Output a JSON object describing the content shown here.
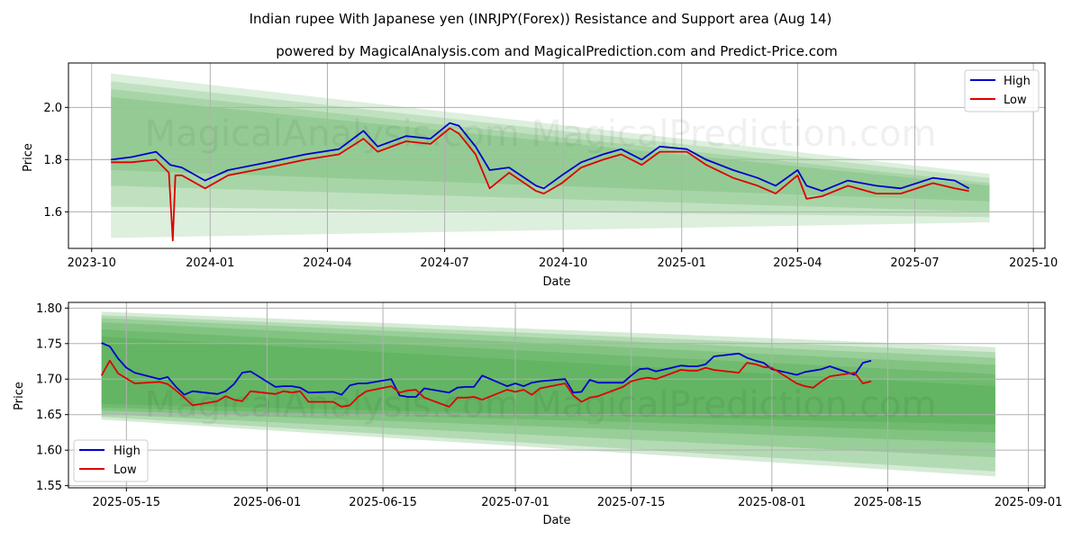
{
  "title": "Indian rupee With Japanese yen (INRJPY(Forex)) Resistance and Support area (Aug 14)",
  "subtitle": "powered by MagicalAnalysis.com and MagicalPrediction.com and Predict-Price.com",
  "watermark": "MagicalAnalysis.com    MagicalPrediction.com",
  "colors": {
    "high": "#0000cc",
    "low": "#dd0000",
    "band": "#2e9a2e",
    "grid": "#b0b0b0"
  },
  "chart_data": [
    {
      "type": "line",
      "xlabel": "Date",
      "ylabel": "Price",
      "x_ticks": [
        "2023-10",
        "2024-01",
        "2024-04",
        "2024-07",
        "2024-10",
        "2025-01",
        "2025-04",
        "2025-07",
        "2025-10"
      ],
      "y_ticks": [
        "1.6",
        "1.8",
        "2.0"
      ],
      "ylim": [
        1.46,
        2.17
      ],
      "xlim": [
        "2023-09-13",
        "2025-10-10"
      ],
      "grid": true,
      "legend": "top-right",
      "series": [
        {
          "name": "High",
          "color": "#0000cc",
          "x": [
            "2023-10-16",
            "2023-11-01",
            "2023-11-20",
            "2023-12-01",
            "2023-12-10",
            "2023-12-28",
            "2024-01-15",
            "2024-02-15",
            "2024-03-15",
            "2024-04-10",
            "2024-04-29",
            "2024-05-10",
            "2024-06-01",
            "2024-06-20",
            "2024-07-05",
            "2024-07-12",
            "2024-07-25",
            "2024-08-05",
            "2024-08-20",
            "2024-09-10",
            "2024-09-16",
            "2024-09-30",
            "2024-10-15",
            "2024-11-01",
            "2024-11-15",
            "2024-12-01",
            "2024-12-15",
            "2025-01-05",
            "2025-01-20",
            "2025-02-10",
            "2025-03-01",
            "2025-03-15",
            "2025-04-01",
            "2025-04-08",
            "2025-04-20",
            "2025-05-10",
            "2025-06-01",
            "2025-06-20",
            "2025-07-15",
            "2025-08-01",
            "2025-08-12"
          ],
          "values": [
            1.8,
            1.81,
            1.83,
            1.78,
            1.77,
            1.72,
            1.76,
            1.79,
            1.82,
            1.84,
            1.91,
            1.85,
            1.89,
            1.88,
            1.94,
            1.93,
            1.85,
            1.76,
            1.77,
            1.7,
            1.69,
            1.74,
            1.79,
            1.82,
            1.84,
            1.8,
            1.85,
            1.84,
            1.8,
            1.76,
            1.73,
            1.7,
            1.76,
            1.7,
            1.68,
            1.72,
            1.7,
            1.69,
            1.73,
            1.72,
            1.69
          ]
        },
        {
          "name": "Low",
          "color": "#dd0000",
          "x": [
            "2023-10-16",
            "2023-11-01",
            "2023-11-20",
            "2023-11-30",
            "2023-12-03",
            "2023-12-05",
            "2023-12-10",
            "2023-12-28",
            "2024-01-15",
            "2024-02-15",
            "2024-03-15",
            "2024-04-10",
            "2024-04-29",
            "2024-05-10",
            "2024-06-01",
            "2024-06-20",
            "2024-07-05",
            "2024-07-12",
            "2024-07-25",
            "2024-08-05",
            "2024-08-20",
            "2024-09-10",
            "2024-09-16",
            "2024-09-30",
            "2024-10-15",
            "2024-11-01",
            "2024-11-15",
            "2024-12-01",
            "2024-12-15",
            "2025-01-05",
            "2025-01-20",
            "2025-02-10",
            "2025-03-01",
            "2025-03-15",
            "2025-04-01",
            "2025-04-08",
            "2025-04-20",
            "2025-05-10",
            "2025-06-01",
            "2025-06-20",
            "2025-07-15",
            "2025-08-01",
            "2025-08-12"
          ],
          "values": [
            1.79,
            1.79,
            1.8,
            1.75,
            1.49,
            1.74,
            1.74,
            1.69,
            1.74,
            1.77,
            1.8,
            1.82,
            1.88,
            1.83,
            1.87,
            1.86,
            1.92,
            1.9,
            1.82,
            1.69,
            1.75,
            1.68,
            1.67,
            1.71,
            1.77,
            1.8,
            1.82,
            1.78,
            1.83,
            1.83,
            1.78,
            1.73,
            1.7,
            1.67,
            1.74,
            1.65,
            1.66,
            1.7,
            1.67,
            1.67,
            1.71,
            1.69,
            1.68
          ]
        }
      ],
      "bands": [
        {
          "x": [
            "2023-10-16",
            "2025-08-28"
          ],
          "upper": [
            2.13,
            1.745
          ],
          "lower": [
            1.5,
            1.56
          ]
        },
        {
          "x": [
            "2023-10-16",
            "2025-08-28"
          ],
          "upper": [
            2.1,
            1.73
          ],
          "lower": [
            1.62,
            1.58
          ]
        },
        {
          "x": [
            "2023-10-16",
            "2025-08-28"
          ],
          "upper": [
            2.07,
            1.71
          ],
          "lower": [
            1.7,
            1.6
          ]
        },
        {
          "x": [
            "2023-10-16",
            "2025-08-28"
          ],
          "upper": [
            2.04,
            1.7
          ],
          "lower": [
            1.76,
            1.64
          ]
        }
      ]
    },
    {
      "type": "line",
      "xlabel": "Date",
      "ylabel": "Price",
      "x_ticks": [
        "2025-05-15",
        "2025-06-01",
        "2025-06-15",
        "2025-07-01",
        "2025-07-15",
        "2025-08-01",
        "2025-08-15",
        "2025-09-01"
      ],
      "y_ticks": [
        "1.55",
        "1.60",
        "1.65",
        "1.70",
        "1.75",
        "1.80"
      ],
      "ylim": [
        1.547,
        1.808
      ],
      "xlim": [
        "2025-05-08",
        "2025-09-03"
      ],
      "grid": true,
      "legend": "bottom-left",
      "series": [
        {
          "name": "High",
          "color": "#0000cc",
          "x": [
            "2025-05-12",
            "2025-05-13",
            "2025-05-14",
            "2025-05-15",
            "2025-05-16",
            "2025-05-19",
            "2025-05-20",
            "2025-05-21",
            "2025-05-22",
            "2025-05-23",
            "2025-05-26",
            "2025-05-27",
            "2025-05-28",
            "2025-05-29",
            "2025-05-30",
            "2025-06-02",
            "2025-06-03",
            "2025-06-04",
            "2025-06-05",
            "2025-06-06",
            "2025-06-09",
            "2025-06-10",
            "2025-06-11",
            "2025-06-12",
            "2025-06-13",
            "2025-06-16",
            "2025-06-17",
            "2025-06-18",
            "2025-06-19",
            "2025-06-20",
            "2025-06-23",
            "2025-06-24",
            "2025-06-25",
            "2025-06-26",
            "2025-06-27",
            "2025-06-30",
            "2025-07-01",
            "2025-07-02",
            "2025-07-03",
            "2025-07-04",
            "2025-07-07",
            "2025-07-08",
            "2025-07-09",
            "2025-07-10",
            "2025-07-11",
            "2025-07-14",
            "2025-07-15",
            "2025-07-16",
            "2025-07-17",
            "2025-07-18",
            "2025-07-21",
            "2025-07-22",
            "2025-07-23",
            "2025-07-24",
            "2025-07-25",
            "2025-07-28",
            "2025-07-29",
            "2025-07-30",
            "2025-07-31",
            "2025-08-01",
            "2025-08-04",
            "2025-08-05",
            "2025-08-06",
            "2025-08-07",
            "2025-08-08",
            "2025-08-11",
            "2025-08-12",
            "2025-08-13"
          ],
          "values": [
            1.751,
            1.746,
            1.729,
            1.716,
            1.709,
            1.7,
            1.703,
            1.689,
            1.678,
            1.683,
            1.679,
            1.683,
            1.693,
            1.709,
            1.711,
            1.689,
            1.69,
            1.69,
            1.688,
            1.681,
            1.682,
            1.678,
            1.691,
            1.694,
            1.694,
            1.7,
            1.677,
            1.675,
            1.675,
            1.687,
            1.681,
            1.688,
            1.689,
            1.689,
            1.705,
            1.69,
            1.694,
            1.69,
            1.695,
            1.697,
            1.7,
            1.681,
            1.682,
            1.699,
            1.695,
            1.695,
            1.705,
            1.714,
            1.715,
            1.711,
            1.719,
            1.718,
            1.718,
            1.721,
            1.732,
            1.736,
            1.73,
            1.726,
            1.723,
            1.714,
            1.706,
            1.71,
            1.712,
            1.714,
            1.718,
            1.706,
            1.723,
            1.726
          ]
        },
        {
          "name": "Low",
          "color": "#dd0000",
          "x": [
            "2025-05-12",
            "2025-05-13",
            "2025-05-14",
            "2025-05-15",
            "2025-05-16",
            "2025-05-19",
            "2025-05-20",
            "2025-05-21",
            "2025-05-22",
            "2025-05-23",
            "2025-05-26",
            "2025-05-27",
            "2025-05-28",
            "2025-05-29",
            "2025-05-30",
            "2025-06-02",
            "2025-06-03",
            "2025-06-04",
            "2025-06-05",
            "2025-06-06",
            "2025-06-09",
            "2025-06-10",
            "2025-06-11",
            "2025-06-12",
            "2025-06-13",
            "2025-06-16",
            "2025-06-17",
            "2025-06-18",
            "2025-06-19",
            "2025-06-20",
            "2025-06-23",
            "2025-06-24",
            "2025-06-25",
            "2025-06-26",
            "2025-06-27",
            "2025-06-30",
            "2025-07-01",
            "2025-07-02",
            "2025-07-03",
            "2025-07-04",
            "2025-07-07",
            "2025-07-08",
            "2025-07-09",
            "2025-07-10",
            "2025-07-11",
            "2025-07-14",
            "2025-07-15",
            "2025-07-16",
            "2025-07-17",
            "2025-07-18",
            "2025-07-21",
            "2025-07-22",
            "2025-07-23",
            "2025-07-24",
            "2025-07-25",
            "2025-07-28",
            "2025-07-29",
            "2025-07-30",
            "2025-07-31",
            "2025-08-01",
            "2025-08-04",
            "2025-08-05",
            "2025-08-06",
            "2025-08-07",
            "2025-08-08",
            "2025-08-11",
            "2025-08-12",
            "2025-08-13"
          ],
          "values": [
            1.705,
            1.726,
            1.708,
            1.701,
            1.694,
            1.696,
            1.693,
            1.684,
            1.674,
            1.663,
            1.669,
            1.676,
            1.671,
            1.669,
            1.683,
            1.679,
            1.683,
            1.681,
            1.683,
            1.668,
            1.668,
            1.661,
            1.663,
            1.675,
            1.683,
            1.69,
            1.681,
            1.684,
            1.685,
            1.674,
            1.661,
            1.674,
            1.674,
            1.675,
            1.671,
            1.685,
            1.682,
            1.685,
            1.678,
            1.687,
            1.694,
            1.677,
            1.668,
            1.674,
            1.676,
            1.689,
            1.697,
            1.7,
            1.702,
            1.7,
            1.713,
            1.712,
            1.712,
            1.716,
            1.713,
            1.709,
            1.723,
            1.721,
            1.717,
            1.716,
            1.694,
            1.69,
            1.688,
            1.697,
            1.704,
            1.709,
            1.694,
            1.697
          ]
        }
      ],
      "bands": [
        {
          "x": [
            "2025-05-12",
            "2025-08-28"
          ],
          "upper": [
            1.795,
            1.745
          ],
          "lower": [
            1.643,
            1.563
          ]
        },
        {
          "x": [
            "2025-05-12",
            "2025-08-28"
          ],
          "upper": [
            1.79,
            1.738
          ],
          "lower": [
            1.647,
            1.57
          ]
        },
        {
          "x": [
            "2025-05-12",
            "2025-08-28"
          ],
          "upper": [
            1.786,
            1.73
          ],
          "lower": [
            1.651,
            1.59
          ]
        },
        {
          "x": [
            "2025-05-12",
            "2025-08-28"
          ],
          "upper": [
            1.78,
            1.72
          ],
          "lower": [
            1.656,
            1.61
          ]
        },
        {
          "x": [
            "2025-05-12",
            "2025-08-28"
          ],
          "upper": [
            1.77,
            1.707
          ],
          "lower": [
            1.66,
            1.625
          ]
        },
        {
          "x": [
            "2025-05-12",
            "2025-08-28"
          ],
          "upper": [
            1.76,
            1.69
          ],
          "lower": [
            1.665,
            1.636
          ]
        }
      ]
    }
  ]
}
